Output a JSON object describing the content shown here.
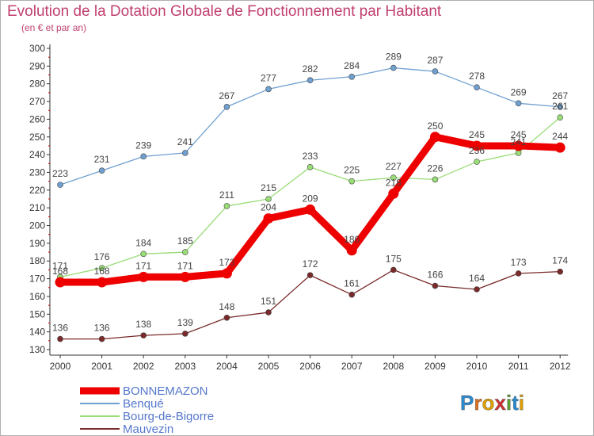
{
  "header": {
    "title": "Evolution de la Dotation Globale de Fonctionnement par Habitant",
    "subtitle": "(en € et par an)"
  },
  "logo": {
    "text": "Proxiti"
  },
  "chart_data": {
    "type": "line",
    "x": [
      "2000",
      "2001",
      "2002",
      "2003",
      "2004",
      "2005",
      "2006",
      "2007",
      "2008",
      "2009",
      "2010",
      "2011",
      "2012"
    ],
    "ylim": [
      130,
      300
    ],
    "yticks": [
      130,
      140,
      150,
      160,
      170,
      180,
      190,
      200,
      210,
      220,
      230,
      240,
      250,
      260,
      270,
      280,
      290,
      300
    ],
    "grid": false,
    "legend_position": "bottom-left",
    "series": [
      {
        "name": "BONNEMAZON",
        "color": "#ee0000",
        "values": [
          168,
          168,
          171,
          171,
          173,
          204,
          209,
          186,
          218,
          250,
          245,
          245,
          244
        ]
      },
      {
        "name": "Benqué",
        "color": "#6fa0d0",
        "values": [
          223,
          231,
          239,
          241,
          267,
          277,
          282,
          284,
          289,
          287,
          278,
          269,
          267
        ]
      },
      {
        "name": "Bourg-de-Bigorre",
        "color": "#99dd77",
        "values": [
          171,
          176,
          184,
          185,
          211,
          215,
          233,
          225,
          227,
          226,
          236,
          241,
          261
        ]
      },
      {
        "name": "Mauvezin",
        "color": "#7a2a2a",
        "values": [
          136,
          136,
          138,
          139,
          148,
          151,
          172,
          161,
          175,
          166,
          164,
          173,
          174
        ]
      }
    ]
  }
}
